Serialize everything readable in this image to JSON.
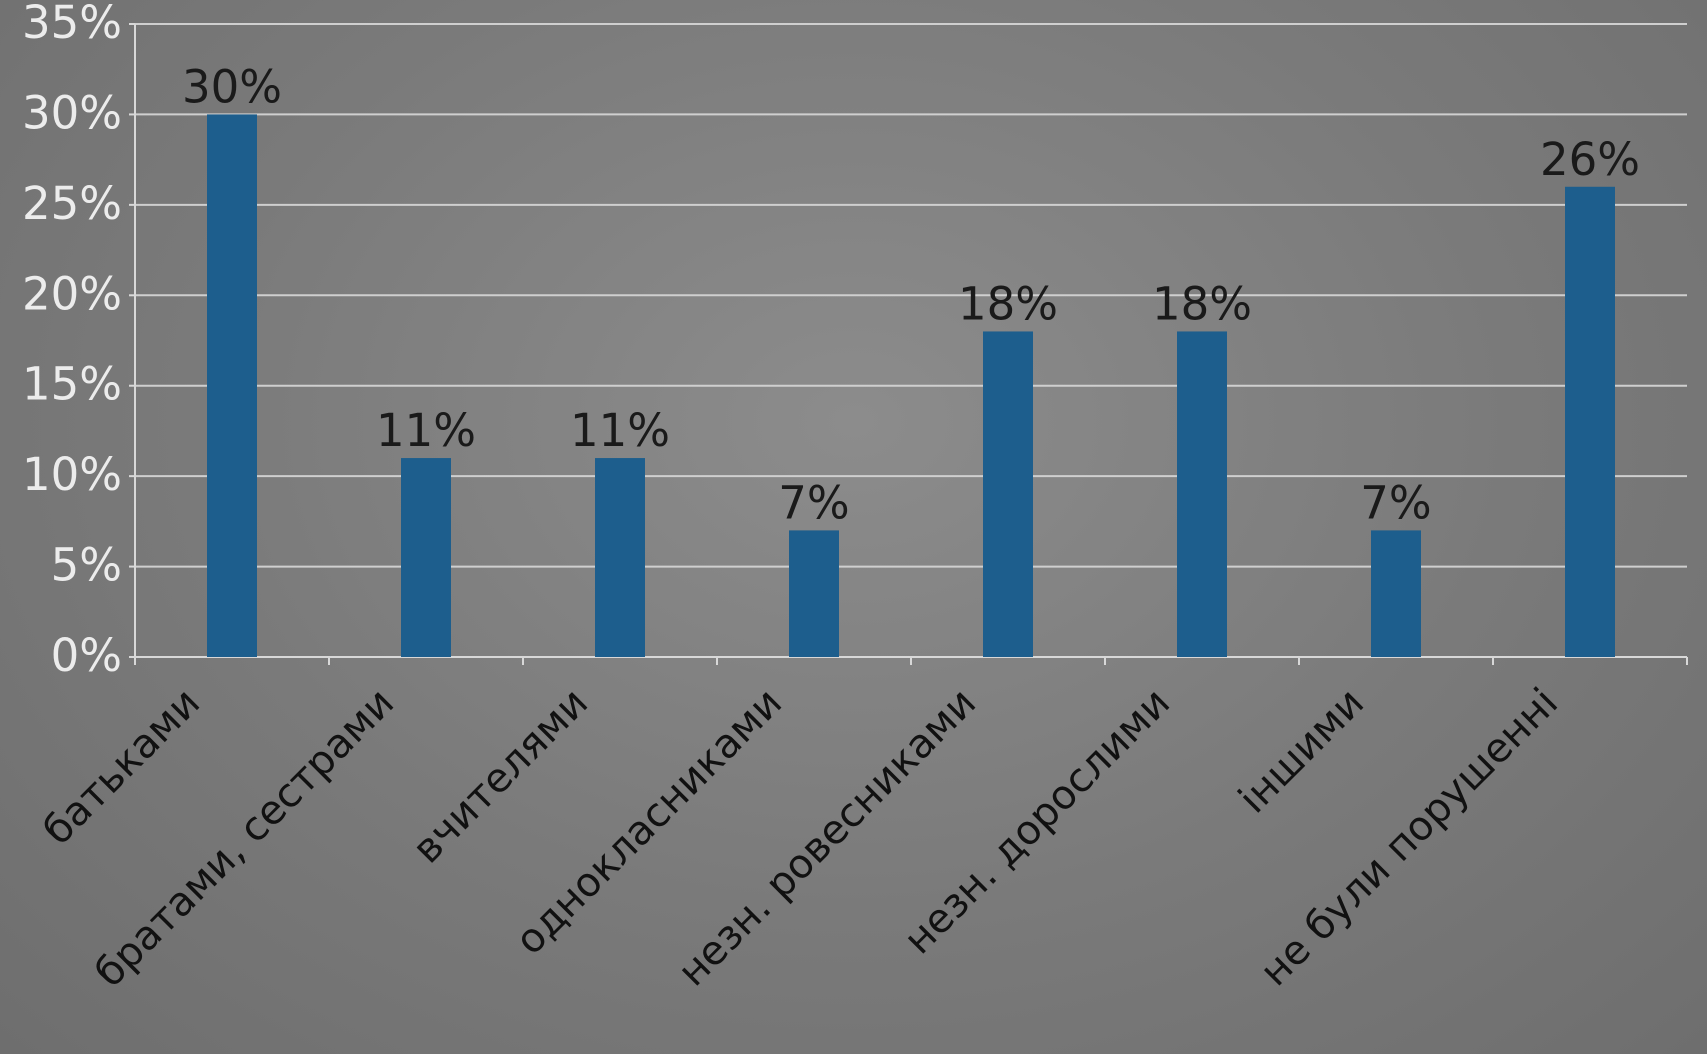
{
  "chart_data": {
    "type": "bar",
    "title": "",
    "xlabel": "",
    "ylabel": "",
    "categories": [
      "батьками",
      "братами, сестрами",
      "вчителями",
      "однокласниками",
      "незн. ровесниками",
      "незн. дорослими",
      "іншими",
      "не були порушенні"
    ],
    "values": [
      30,
      11,
      11,
      7,
      18,
      18,
      7,
      26
    ],
    "data_labels": [
      "30%",
      "11%",
      "11%",
      "7%",
      "18%",
      "18%",
      "7%",
      "26%"
    ],
    "ylim": [
      0,
      35
    ],
    "yticks": [
      0,
      5,
      10,
      15,
      20,
      25,
      30,
      35
    ],
    "ytick_labels": [
      "0%",
      "5%",
      "10%",
      "15%",
      "20%",
      "25%",
      "30%",
      "35%"
    ],
    "grid": true,
    "legend": "none",
    "colors": {
      "bar": "#1d5e8d",
      "background": "#7d7d7d",
      "grid": "#cfcfcf",
      "tick_text": "#ececec",
      "label_text": "#1a1a1a"
    }
  }
}
